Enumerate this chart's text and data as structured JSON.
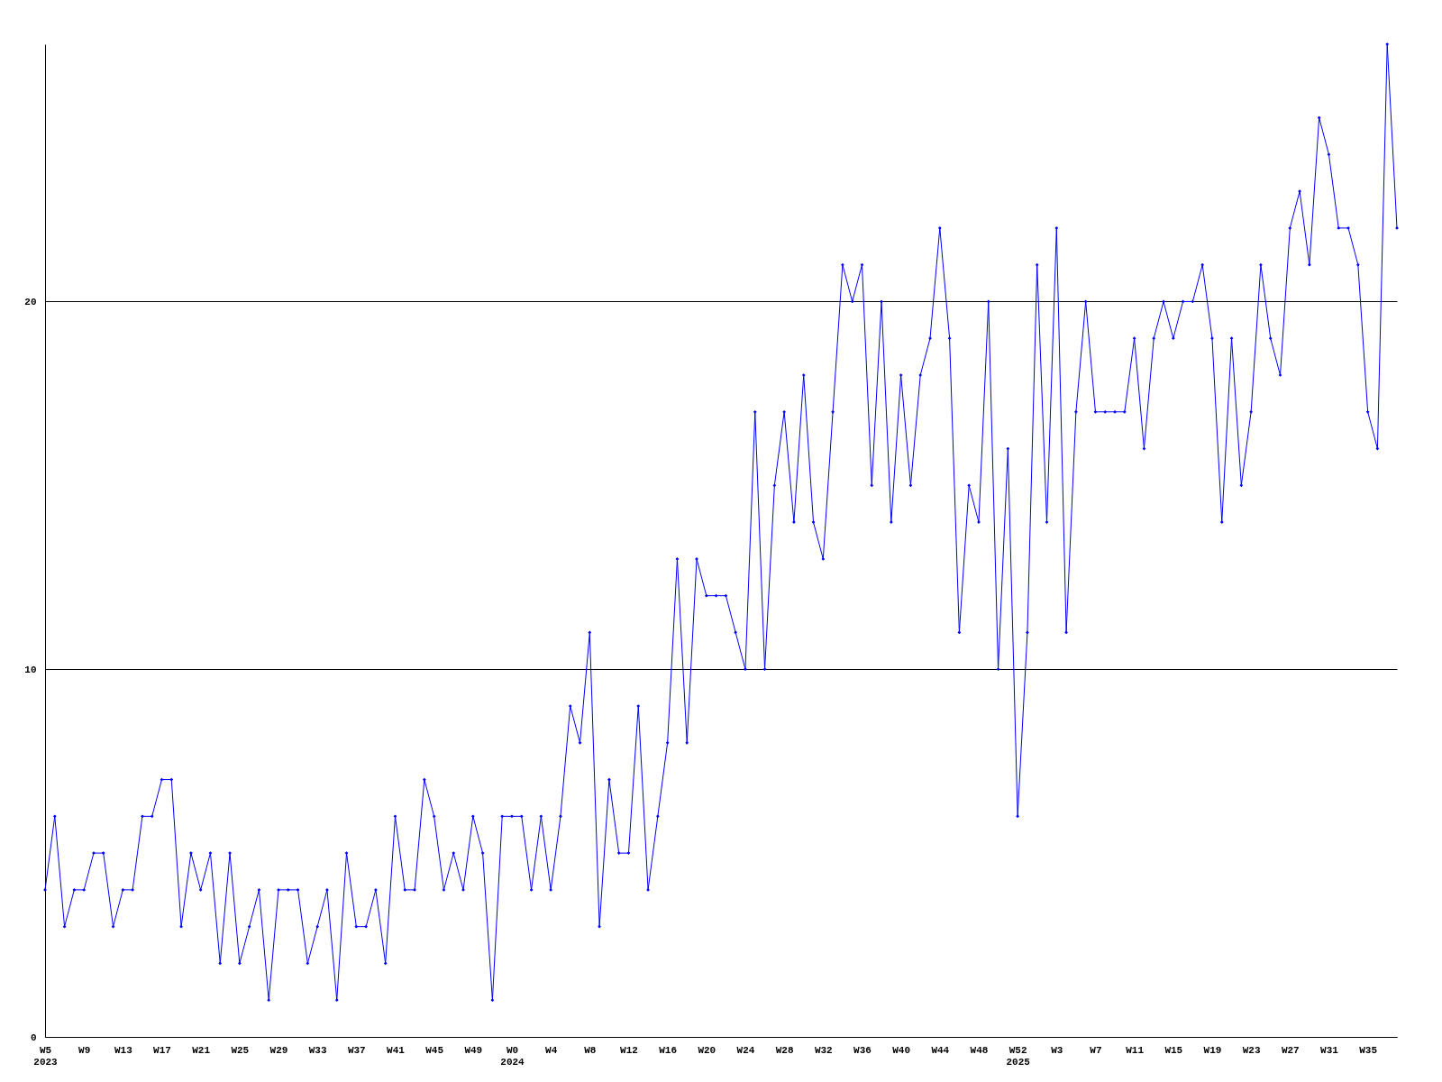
{
  "chart_data": {
    "type": "line",
    "categories": [
      "W5\n2023",
      null,
      null,
      null,
      "W9",
      null,
      null,
      null,
      "W13",
      null,
      null,
      null,
      "W17",
      null,
      null,
      null,
      "W21",
      null,
      null,
      null,
      "W25",
      null,
      null,
      null,
      "W29",
      null,
      null,
      null,
      "W33",
      null,
      null,
      null,
      "W37",
      null,
      null,
      null,
      "W41",
      null,
      null,
      null,
      "W45",
      null,
      null,
      null,
      "W49",
      null,
      null,
      null,
      "W0\n2024",
      null,
      null,
      null,
      "W4",
      null,
      null,
      null,
      "W8",
      null,
      null,
      null,
      "W12",
      null,
      null,
      null,
      "W16",
      null,
      null,
      null,
      "W20",
      null,
      null,
      null,
      "W24",
      null,
      null,
      null,
      "W28",
      null,
      null,
      null,
      "W32",
      null,
      null,
      null,
      "W36",
      null,
      null,
      null,
      "W40",
      null,
      null,
      null,
      "W44",
      null,
      null,
      null,
      "W48",
      null,
      null,
      null,
      "W52\n2025",
      null,
      null,
      null,
      "W3",
      null,
      null,
      null,
      "W7",
      null,
      null,
      null,
      "W11",
      null,
      null,
      null,
      "W15",
      null,
      null,
      null,
      "W19",
      null,
      null,
      null,
      "W23",
      null,
      null,
      null,
      "W27",
      null,
      null,
      null,
      "W31",
      null,
      null,
      null,
      "W35",
      null,
      null,
      null
    ],
    "series": [
      {
        "color": "#0000ff",
        "values": [
          4,
          6,
          3,
          4,
          4,
          5,
          5,
          3,
          4,
          4,
          6,
          6,
          7,
          7,
          3,
          5,
          4,
          5,
          2,
          5,
          2,
          3,
          4,
          1,
          4,
          4,
          4,
          2,
          3,
          4,
          1,
          5,
          3,
          3,
          4,
          2,
          6,
          4,
          4,
          7,
          6,
          4,
          5,
          4,
          6,
          5,
          1,
          6,
          6,
          6,
          4,
          6,
          4,
          6,
          9,
          8,
          11,
          3,
          7,
          5,
          5,
          9,
          4,
          6,
          8,
          13,
          8,
          13,
          12,
          12,
          12,
          11,
          10,
          17,
          10,
          15,
          17,
          14,
          18,
          14,
          13,
          17,
          21,
          20,
          21,
          15,
          20,
          14,
          18,
          15,
          18,
          19,
          22,
          19,
          11,
          15,
          14,
          20,
          10,
          16,
          6,
          11,
          21,
          14,
          22,
          11,
          17,
          20,
          17,
          17,
          17,
          17,
          19,
          16,
          19,
          20,
          19,
          20,
          20,
          21,
          19,
          14,
          19,
          15,
          17,
          21,
          19,
          18,
          22,
          23,
          21,
          25,
          24,
          22,
          22,
          21,
          17,
          16,
          27,
          22
        ]
      }
    ],
    "ylim": [
      0,
      27
    ],
    "yticks": [
      0,
      10,
      20
    ],
    "grid": "y",
    "marker": "diamond",
    "line_style": "solid",
    "legend": false
  }
}
